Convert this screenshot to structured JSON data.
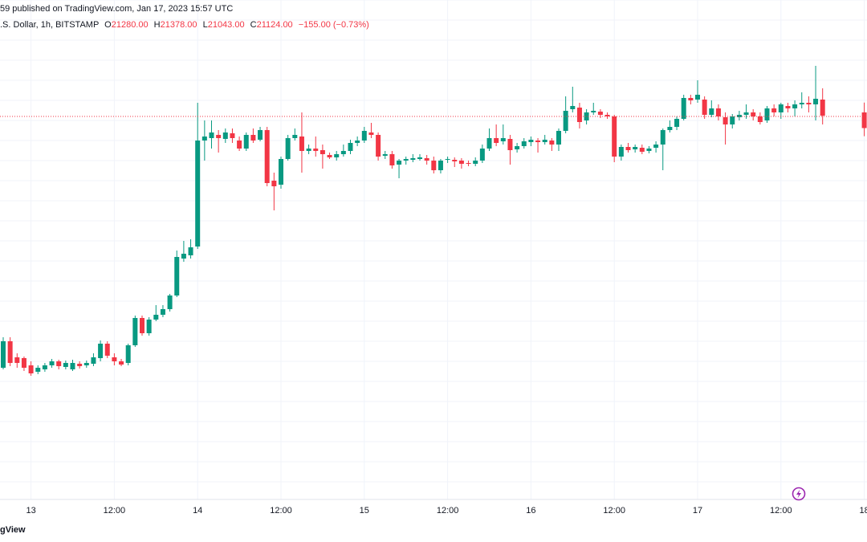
{
  "chart_data": {
    "type": "candlestick",
    "header": {
      "published": "59 published on TradingView.com, Jan 17, 2023 15:57 UTC",
      "symbol": ".S. Dollar, 1h, BITSTAMP",
      "ohlc_labels": [
        "O",
        "H",
        "L",
        "C"
      ],
      "ohlc_values": [
        "21280.00",
        "21378.00",
        "21043.00",
        "21124.00"
      ],
      "change": "−155.00 (−0.73%)"
    },
    "footer": "gView",
    "up_color": "#089981",
    "down_color": "#f23645",
    "grid": true,
    "ylim": [
      17424,
      22400
    ],
    "ygrid": [
      17600,
      17800,
      18000,
      18200,
      18400,
      18600,
      18800,
      19000,
      19200,
      19400,
      19600,
      19800,
      20000,
      20200,
      20400,
      20600,
      20800,
      21000,
      21200,
      21400,
      21600,
      21800,
      22000,
      22200,
      22400
    ],
    "price_line": 21240,
    "categories": [
      null,
      null,
      null,
      null,
      "13",
      null,
      null,
      null,
      null,
      null,
      null,
      null,
      null,
      null,
      null,
      null,
      "12:00",
      null,
      null,
      null,
      null,
      null,
      null,
      null,
      null,
      null,
      null,
      null,
      "14",
      null,
      null,
      null,
      null,
      null,
      null,
      null,
      null,
      null,
      null,
      null,
      "12:00",
      null,
      null,
      null,
      null,
      null,
      null,
      null,
      null,
      null,
      null,
      null,
      "15",
      null,
      null,
      null,
      null,
      null,
      null,
      null,
      null,
      null,
      null,
      null,
      "12:00",
      null,
      null,
      null,
      null,
      null,
      null,
      null,
      null,
      null,
      null,
      null,
      "16",
      null,
      null,
      null,
      null,
      null,
      null,
      null,
      null,
      null,
      null,
      null,
      "12:00",
      null,
      null,
      null,
      null,
      null,
      null,
      null,
      null,
      null,
      null,
      null,
      "17",
      null,
      null,
      null,
      null,
      null,
      null,
      null,
      null,
      null,
      null,
      null,
      "12:00",
      null,
      null,
      null,
      null,
      null,
      null,
      null,
      null,
      null,
      null,
      null,
      "18"
    ],
    "open": [
      18736,
      19000,
      18840,
      18832,
      18760,
      18696,
      18720,
      18760,
      18800,
      18744,
      18720,
      18776,
      18760,
      18776,
      18832,
      18976,
      18840,
      18800,
      18784,
      18960,
      19232,
      19080,
      19216,
      19264,
      19320,
      19456,
      19824,
      19856,
      19944,
      21000,
      21024,
      21056,
      21016,
      21072,
      21000,
      20920,
      21056,
      21008,
      21104,
      20600,
      20560,
      20816,
      21024,
      21040,
      20896,
      20920,
      20904,
      20856,
      20832,
      20864,
      20896,
      20976,
      21000,
      21080,
      21056,
      20848,
      20864,
      20760,
      20800,
      20808,
      20816,
      20824,
      20800,
      20704,
      20808,
      20808,
      20800,
      20776,
      20768,
      20800,
      20920,
      21024,
      20992,
      21016,
      20912,
      20944,
      20984,
      21000,
      20984,
      21000,
      20960,
      21096,
      21312,
      21328,
      21200,
      21280,
      21288,
      21256,
      21240,
      20840,
      20936,
      20912,
      20928,
      20896,
      20928,
      20960,
      21104,
      21136,
      21216,
      21424,
      21408,
      21408,
      21256,
      21320,
      21232,
      21160,
      21232,
      21256,
      21280,
      21240,
      21200,
      21320,
      21280,
      21344,
      21320,
      21360,
      21376,
      21360,
      21408,
      null,
      null,
      null,
      null,
      null,
      21280
    ],
    "high": [
      19040,
      19040,
      18880,
      18848,
      18800,
      18760,
      18784,
      18824,
      18816,
      18808,
      18816,
      18800,
      18808,
      18880,
      19008,
      19000,
      18880,
      18824,
      18976,
      19256,
      19256,
      19240,
      19360,
      19360,
      19472,
      19904,
      20000,
      20016,
      21376,
      21200,
      21200,
      21104,
      21120,
      21120,
      21040,
      21080,
      21120,
      21136,
      21136,
      20680,
      20840,
      21056,
      21120,
      21280,
      20960,
      21040,
      20960,
      20880,
      20896,
      20960,
      21008,
      21040,
      21136,
      21176,
      21080,
      20896,
      20896,
      20816,
      20840,
      20864,
      20864,
      20856,
      20840,
      20816,
      20840,
      20832,
      20824,
      20800,
      20832,
      20960,
      21120,
      21160,
      21160,
      21056,
      20976,
      21024,
      21040,
      21024,
      21056,
      21024,
      21120,
      21440,
      21536,
      21376,
      21312,
      21376,
      21312,
      21280,
      21256,
      20960,
      20976,
      20960,
      20960,
      20944,
      20992,
      21120,
      21200,
      21240,
      21456,
      21456,
      21600,
      21440,
      21400,
      21360,
      21280,
      21264,
      21296,
      21360,
      21312,
      21280,
      21344,
      21360,
      21376,
      21376,
      21400,
      21480,
      21440,
      21744,
      21520,
      null,
      null,
      null,
      null,
      null,
      21378
    ],
    "low": [
      18720,
      18752,
      18736,
      18704,
      18656,
      18672,
      18696,
      18736,
      18720,
      18720,
      18704,
      18728,
      18736,
      18752,
      18800,
      18832,
      18760,
      18752,
      18760,
      18944,
      19056,
      19056,
      19200,
      19240,
      19296,
      19440,
      19792,
      19824,
      19920,
      20800,
      20920,
      20880,
      20976,
      20976,
      20896,
      20896,
      20976,
      20992,
      20544,
      20304,
      20520,
      20800,
      21000,
      20680,
      20864,
      20840,
      20720,
      20816,
      20800,
      20840,
      20864,
      20944,
      20976,
      21024,
      20800,
      20816,
      20720,
      20624,
      20760,
      20784,
      20800,
      20760,
      20672,
      20672,
      20776,
      20736,
      20720,
      20744,
      20744,
      20776,
      20896,
      20944,
      20960,
      20760,
      20880,
      20920,
      20944,
      20880,
      20960,
      20896,
      20896,
      21072,
      21280,
      21120,
      21160,
      21256,
      21224,
      21216,
      20784,
      20800,
      20880,
      20880,
      20864,
      20872,
      20880,
      20704,
      21080,
      21104,
      21200,
      21360,
      21376,
      21216,
      21232,
      21200,
      20960,
      21120,
      21200,
      21216,
      21200,
      21160,
      21176,
      21240,
      21216,
      21280,
      21240,
      21320,
      21280,
      21200,
      21160,
      null,
      null,
      null,
      null,
      null,
      21043
    ],
    "close": [
      19000,
      18784,
      18784,
      18736,
      18680,
      18736,
      18760,
      18800,
      18752,
      18784,
      18784,
      18752,
      18784,
      18840,
      18976,
      18856,
      18800,
      18768,
      18960,
      19232,
      19080,
      19216,
      19264,
      19320,
      19456,
      19840,
      19872,
      19936,
      21000,
      21040,
      21080,
      21024,
      21080,
      21024,
      20920,
      21056,
      21000,
      21104,
      20576,
      20544,
      20816,
      21024,
      21056,
      20896,
      20920,
      20896,
      20864,
      20832,
      20864,
      20896,
      20976,
      21000,
      21096,
      21056,
      20840,
      20864,
      20752,
      20800,
      20816,
      20824,
      20832,
      20800,
      20704,
      20800,
      20816,
      20792,
      20768,
      20768,
      20800,
      20920,
      21024,
      20976,
      21024,
      20904,
      20944,
      20992,
      21008,
      20984,
      21008,
      20960,
      21096,
      21296,
      21344,
      21184,
      21280,
      21296,
      21256,
      21240,
      20840,
      20936,
      20904,
      20936,
      20888,
      20920,
      20960,
      21104,
      21136,
      21216,
      21424,
      21400,
      21456,
      21256,
      21320,
      21240,
      21160,
      21240,
      21256,
      21280,
      21240,
      21184,
      21320,
      21280,
      21360,
      21320,
      21360,
      21376,
      21360,
      21416,
      21248,
      null,
      null,
      null,
      null,
      null,
      21124
    ]
  }
}
